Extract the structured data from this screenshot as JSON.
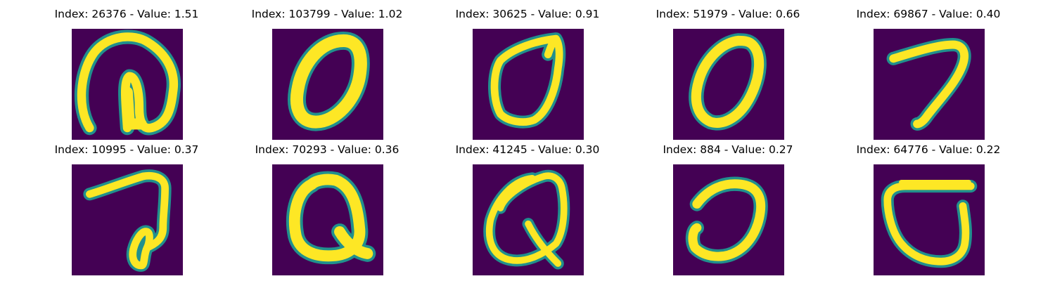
{
  "panels": [
    {
      "title": "Index: 26376 - Value: 1.51",
      "image": "handwritten-digit"
    },
    {
      "title": "Index: 103799 - Value: 1.02",
      "image": "handwritten-digit"
    },
    {
      "title": "Index: 30625 - Value: 0.91",
      "image": "handwritten-digit"
    },
    {
      "title": "Index: 51979 - Value: 0.66",
      "image": "handwritten-digit"
    },
    {
      "title": "Index: 69867 - Value: 0.40",
      "image": "handwritten-digit"
    },
    {
      "title": "Index: 10995 - Value: 0.37",
      "image": "handwritten-digit"
    },
    {
      "title": "Index: 70293 - Value: 0.36",
      "image": "handwritten-digit"
    },
    {
      "title": "Index: 41245 - Value: 0.30",
      "image": "handwritten-digit"
    },
    {
      "title": "Index: 884 - Value: 0.27",
      "image": "handwritten-digit"
    },
    {
      "title": "Index: 64776 - Value: 0.22",
      "image": "handwritten-digit"
    }
  ],
  "colors": {
    "background": "#440154",
    "edge": "#21908d",
    "stroke": "#fde725"
  }
}
